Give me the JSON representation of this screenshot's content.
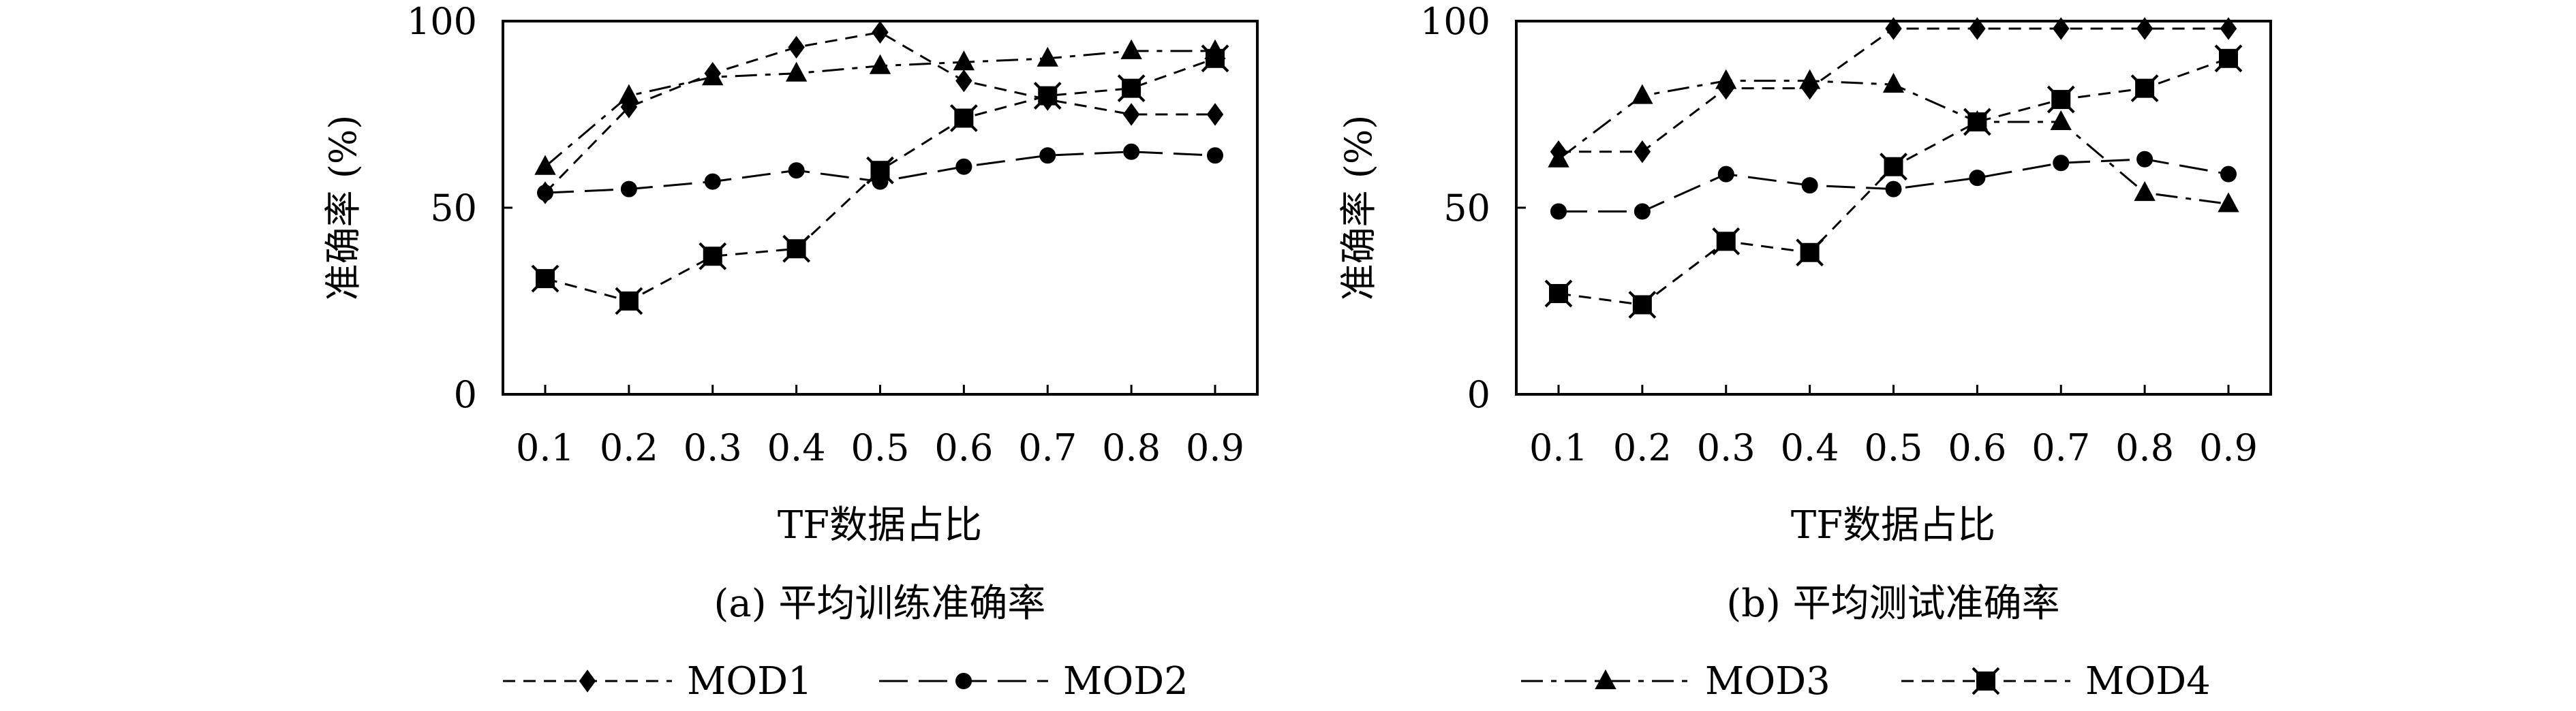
{
  "chart_data": [
    {
      "type": "line",
      "caption": "(a) 平均训练准确率",
      "xlabel": "TF数据占比",
      "ylabel": "准确率 (%)",
      "categories": [
        "0.1",
        "0.2",
        "0.3",
        "0.4",
        "0.5",
        "0.6",
        "0.7",
        "0.8",
        "0.9"
      ],
      "ylim": [
        0,
        100
      ],
      "yticks": [
        "0",
        "50",
        "100"
      ],
      "grid": false,
      "legend_position": "bottom",
      "series": [
        {
          "name": "MOD1",
          "marker": "diamond",
          "dash": "short",
          "values": [
            54,
            77,
            86,
            93,
            97,
            84,
            79,
            75,
            75
          ]
        },
        {
          "name": "MOD2",
          "marker": "circle",
          "dash": "long",
          "values": [
            54,
            55,
            57,
            60,
            57,
            61,
            64,
            65,
            64
          ]
        },
        {
          "name": "MOD3",
          "marker": "triangle",
          "dash": "dashdot",
          "values": [
            61,
            80,
            85,
            86,
            88,
            89,
            90,
            92,
            92
          ]
        },
        {
          "name": "MOD4",
          "marker": "square",
          "dash": "short",
          "values": [
            31,
            25,
            37,
            39,
            60,
            74,
            80,
            82,
            90
          ]
        }
      ]
    },
    {
      "type": "line",
      "caption": "(b) 平均测试准确率",
      "xlabel": "TF数据占比",
      "ylabel": "准确率 (%)",
      "categories": [
        "0.1",
        "0.2",
        "0.3",
        "0.4",
        "0.5",
        "0.6",
        "0.7",
        "0.8",
        "0.9"
      ],
      "ylim": [
        0,
        100
      ],
      "yticks": [
        "0",
        "50",
        "100"
      ],
      "grid": false,
      "legend_position": "bottom",
      "series": [
        {
          "name": "MOD1",
          "marker": "diamond",
          "dash": "short",
          "values": [
            65,
            65,
            82,
            82,
            98,
            98,
            98,
            98,
            98
          ]
        },
        {
          "name": "MOD2",
          "marker": "circle",
          "dash": "long",
          "values": [
            49,
            49,
            59,
            56,
            55,
            58,
            62,
            63,
            59
          ]
        },
        {
          "name": "MOD3",
          "marker": "triangle",
          "dash": "dashdot",
          "values": [
            63,
            80,
            84,
            84,
            83,
            73,
            73,
            54,
            51
          ]
        },
        {
          "name": "MOD4",
          "marker": "square",
          "dash": "short",
          "values": [
            27,
            24,
            41,
            38,
            61,
            73,
            79,
            82,
            90
          ]
        }
      ]
    }
  ],
  "legend": [
    {
      "name": "MOD1",
      "marker": "diamond",
      "dash": "short"
    },
    {
      "name": "MOD2",
      "marker": "circle",
      "dash": "long"
    },
    {
      "name": "MOD3",
      "marker": "triangle",
      "dash": "dashdot"
    },
    {
      "name": "MOD4",
      "marker": "square",
      "dash": "short"
    }
  ],
  "colors": {
    "ink": "#000000",
    "background": "#ffffff"
  }
}
